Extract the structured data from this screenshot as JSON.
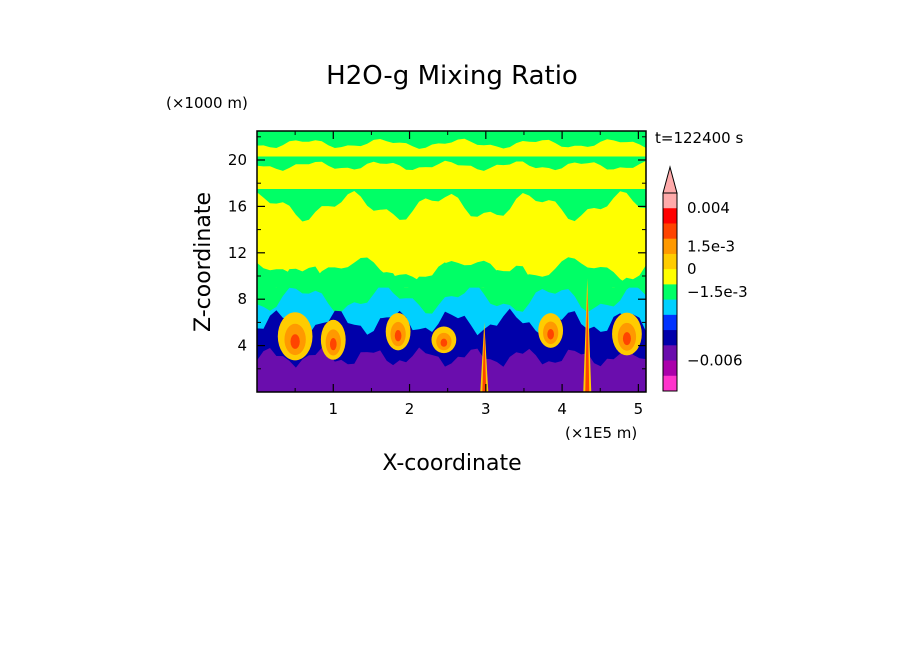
{
  "chart_data": {
    "type": "heatmap",
    "title": "H2O-g Mixing Ratio",
    "xlabel": "X-coordinate",
    "ylabel": "Z-coordinate",
    "x_unit": "(×1E5 m)",
    "y_unit": "(×1000 m)",
    "time_label": "t=122400 s",
    "xlim": [
      0,
      5.1
    ],
    "ylim": [
      0,
      22.5
    ],
    "xticks": [
      1,
      2,
      3,
      4,
      5
    ],
    "yticks": [
      4,
      8,
      12,
      16,
      20
    ],
    "colorbar": {
      "colors": [
        "#ff33cc",
        "#aa00aa",
        "#6a0dad",
        "#0000aa",
        "#0033ff",
        "#00d0ff",
        "#00ff66",
        "#ffff00",
        "#ffcc00",
        "#ff9900",
        "#ff4400",
        "#ff0000",
        "#ffaaaa"
      ],
      "labels": [
        "0.004",
        "1.5e-3",
        "0",
        "−1.5e-3",
        "−0.006"
      ],
      "label_levels": [
        0.004,
        0.0015,
        0,
        -0.0015,
        -0.006
      ]
    },
    "field_layers": [
      {
        "name": "upper-band-low",
        "color": "#00ff66",
        "z_range": [
          0,
          22.5
        ]
      },
      {
        "name": "moist-layer",
        "color": "#ffff00",
        "z_range": [
          9,
          16
        ]
      },
      {
        "name": "upper-moist-band-1",
        "color": "#ffff00",
        "z_range": [
          17.5,
          19.5
        ]
      },
      {
        "name": "upper-moist-band-2",
        "color": "#ffff00",
        "z_range": [
          20.3,
          21.4
        ]
      },
      {
        "name": "mid-layer",
        "color": "#00ff66",
        "z_range": [
          7,
          10
        ]
      },
      {
        "name": "low-layer",
        "color": "#00d0ff",
        "z_range": [
          4,
          8
        ]
      },
      {
        "name": "dry-low",
        "color": "#0000aa",
        "z_range": [
          2,
          6
        ]
      },
      {
        "name": "surface-layer",
        "color": "#6a0dad",
        "z_range": [
          0,
          3
        ]
      }
    ],
    "plumes": [
      {
        "x": 0.5,
        "z": 4.8,
        "height": 3.6,
        "width": 0.35
      },
      {
        "x": 1.0,
        "z": 4.5,
        "height": 3.0,
        "width": 0.25
      },
      {
        "x": 1.85,
        "z": 5.2,
        "height": 2.8,
        "width": 0.25
      },
      {
        "x": 2.45,
        "z": 4.5,
        "height": 2.0,
        "width": 0.25
      },
      {
        "x": 3.85,
        "z": 5.3,
        "height": 2.6,
        "width": 0.25
      },
      {
        "x": 4.85,
        "z": 5.0,
        "height": 3.2,
        "width": 0.3
      }
    ],
    "narrow_spikes": [
      {
        "x": 2.98,
        "top": 6.0
      },
      {
        "x": 4.33,
        "top": 9.8
      }
    ]
  }
}
